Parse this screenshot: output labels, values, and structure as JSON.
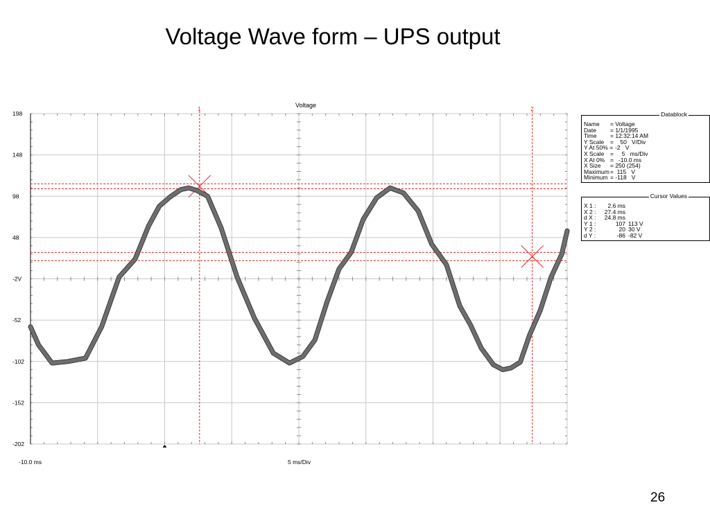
{
  "slide": {
    "title": "Voltage Wave form – UPS output",
    "page_number": "26"
  },
  "chart_data": {
    "type": "line",
    "title": "Voltage",
    "xlabel": "5 ms/Div",
    "x_start_label": "-10.0 ms",
    "xlim": [
      -10,
      30
    ],
    "ylim": [
      -202,
      198
    ],
    "y_ticks": [
      198,
      148,
      98,
      48,
      -2,
      -52,
      -102,
      -152,
      -202
    ],
    "y_tick_labels": [
      "198",
      "148",
      "98",
      "48",
      "-2V",
      "-52",
      "-102",
      "-152",
      "-202"
    ],
    "x_gridlines_ms": [
      -10,
      -5,
      0,
      5,
      10,
      15,
      20,
      25,
      30
    ],
    "grid": true,
    "series": [
      {
        "x": [
          -10,
          -9.4,
          -8.4,
          -7.2,
          -5.9,
          -4.7,
          -3.4,
          -2.2,
          -1.2,
          -0.4,
          0.4,
          1.2,
          1.8,
          2.4,
          3.2,
          4.2,
          5.4,
          6.7,
          8.1,
          9.3,
          10.3,
          11.2,
          12.1,
          13.0,
          13.9,
          14.8,
          15.8,
          16.8,
          17.8,
          18.9,
          19.9,
          21.0,
          22.0,
          22.8,
          23.6,
          24.5,
          25.2,
          25.8,
          26.5,
          27.2,
          28.0,
          28.8,
          29.6,
          30
        ],
        "y": [
          -60,
          -82,
          -104,
          -102,
          -98,
          -60,
          0,
          22,
          62,
          86,
          97,
          106,
          108,
          105,
          98,
          60,
          0,
          -50,
          -92,
          -104,
          -96,
          -76,
          -30,
          10,
          30,
          70,
          96,
          108,
          102,
          80,
          40,
          15,
          -35,
          -58,
          -86,
          -106,
          -112,
          -110,
          -103,
          -70,
          -40,
          0,
          28,
          56
        ]
      }
    ],
    "cursors": [
      {
        "label": "1",
        "x_ms": 2.6,
        "y_values": [
          107,
          113
        ]
      },
      {
        "label": "2",
        "x_ms": 27.4,
        "y_values": [
          20,
          30
        ]
      }
    ],
    "colors": {
      "trace": "#6e6e6e",
      "cursor": "#e32222",
      "grid": "#c8c8c8"
    }
  },
  "datablock": {
    "title": "Datablock",
    "rows": [
      {
        "key": "Name",
        "value": "= Voltage"
      },
      {
        "key": "Date",
        "value": "= 1/1/1995"
      },
      {
        "key": "Time",
        "value": "= 12:32:14 AM"
      },
      {
        "key": "Y Scale",
        "value": "=    50   V/Div"
      },
      {
        "key": "Y At 50% =",
        "value": "   -2   V"
      },
      {
        "key": "X Scale",
        "value": "=     5   ms/Div"
      },
      {
        "key": "X At 0%",
        "value": "=   -10.0 ms"
      },
      {
        "key": "X Size",
        "value": "= 250 (254)"
      },
      {
        "key": "Maximum",
        "value": "=  115   V"
      },
      {
        "key": "Minimum",
        "value": "= -118   V"
      }
    ]
  },
  "cursor_values": {
    "title": "Cursor Values",
    "rows": [
      {
        "key": "X 1 :",
        "v1": "2.6 ms",
        "v2": ""
      },
      {
        "key": "X 2 :",
        "v1": "27.4 ms",
        "v2": ""
      },
      {
        "key": "d X :",
        "v1": "24.8 ms",
        "v2": ""
      },
      {
        "key": "Y 1 :",
        "v1": "107",
        "v2": "113 V"
      },
      {
        "key": "Y 2 :",
        "v1": "20",
        "v2": "30 V"
      },
      {
        "key": "d Y :",
        "v1": "-86",
        "v2": "-82 V"
      }
    ]
  }
}
